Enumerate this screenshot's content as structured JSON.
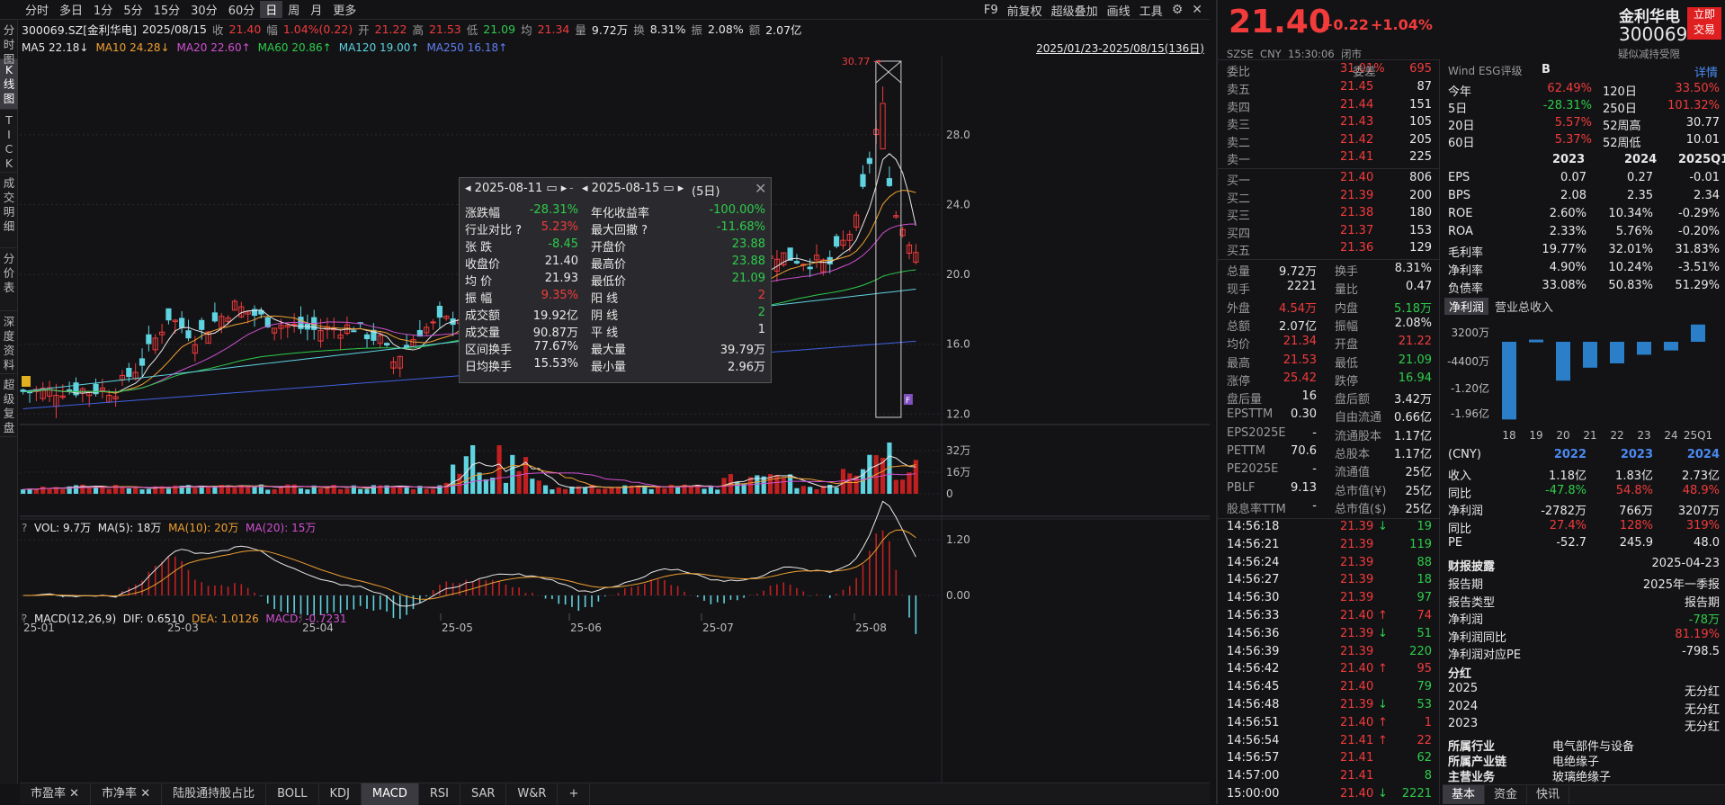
{
  "periods": [
    "分时",
    "多日",
    "1分",
    "5分",
    "15分",
    "30分",
    "60分",
    "日",
    "周",
    "月",
    "更多"
  ],
  "top_right": [
    "F9",
    "前复权",
    "超级叠加",
    "画线",
    "工具"
  ],
  "info": {
    "code": "300069.SZ[金利华电]",
    "date": "2025/08/15",
    "close_label": "收",
    "close": "21.40",
    "chg_label": "幅",
    "chg": "1.04%(0.22)",
    "open_label": "开",
    "open": "21.22",
    "high_label": "高",
    "high": "21.53",
    "low_label": "低",
    "low": "21.09",
    "avg_label": "均",
    "avg": "21.34",
    "vol_label": "量",
    "vol": "9.72万",
    "turn_label": "换",
    "turn": "8.31%",
    "amp_label": "振",
    "amp": "2.08%",
    "amt_label": "额",
    "amt": "2.07亿"
  },
  "ma": {
    "ma5": "MA5",
    "ma5_val": "22.18↓",
    "ma10": "MA10",
    "ma10_val": "24.28↓",
    "ma20": "MA20",
    "ma20_val": "22.60↑",
    "ma60": "MA60",
    "ma60_val": "20.86↑",
    "ma120": "MA120",
    "ma120_val": "19.00↑",
    "ma250": "MA250",
    "ma250_val": "16.18↑",
    "range": "2025/01/23-2025/08/15(136日)"
  },
  "leftnav": [
    "分时图",
    "K线图",
    "TICK",
    "成交明细",
    "分价表",
    "深度资料",
    "超级复盘"
  ],
  "kline": {
    "y_ticks": [
      "28.0",
      "24.0",
      "20.0",
      "16.0",
      "12.0"
    ],
    "max_label": "30.77",
    "x_ticks": [
      "25-01",
      "25-03",
      "25-04",
      "25-05",
      "25-06",
      "25-07",
      "25-08"
    ],
    "box_f": "F"
  },
  "vol": {
    "q": "?",
    "label": "VOL: 9.7万",
    "ma5": "MA(5): 18万",
    "ma10": "MA(10): 20万",
    "ma20": "MA(20): 15万",
    "y_ticks": [
      "32万",
      "16万",
      "0"
    ]
  },
  "macd": {
    "q": "?",
    "label": "MACD(12,26,9)",
    "dif": "DIF: 0.6510",
    "dea": "DEA: 1.0126",
    "macd": "MACD: -0.7231",
    "y_ticks": [
      "1.20",
      "0.00"
    ]
  },
  "popup": {
    "d1": "2025-08-11",
    "dash": "-",
    "d2": "2025-08-15",
    "days": "(5日)",
    "rows": [
      [
        "涨跌幅",
        "-28.31%",
        "年化收益率",
        "-100.00%"
      ],
      [
        "行业对比 ?",
        "5.23%",
        "最大回撤 ?",
        "-11.68%"
      ],
      [
        "张  跌",
        "-8.45",
        "开盘价",
        "23.88"
      ],
      [
        "收盘价",
        "21.40",
        "最高价",
        "23.88"
      ],
      [
        "均  价",
        "21.93",
        "最低价",
        "21.09"
      ],
      [
        "振  幅",
        "9.35%",
        "阳  线",
        "2"
      ],
      [
        "成交额",
        "19.92亿",
        "阴  线",
        "2"
      ],
      [
        "成交量",
        "90.87万",
        "平  线",
        "1"
      ],
      [
        "区间换手",
        "77.67%",
        "最大量",
        "39.79万"
      ],
      [
        "日均换手",
        "15.53%",
        "最小量",
        "2.96万"
      ]
    ]
  },
  "bottom_tabs": [
    "市盈率",
    "市净率",
    "陆股通持股占比",
    "BOLL",
    "KDJ",
    "MACD",
    "RSI",
    "SAR",
    "W&R",
    "+"
  ],
  "quote": {
    "price": "21.40",
    "chg": "+0.22",
    "pct": "+1.04%",
    "name": "金利华电",
    "code": "300069",
    "btn1": "立即",
    "btn2": "交易",
    "exch": "SZSE  CNY  15:30:06  闭市",
    "note": "疑似减持受限"
  },
  "orderbook": {
    "wb_label": "委比",
    "wb": "31.01%",
    "wc_label": "委差",
    "wc": "695",
    "asks": [
      [
        "卖五",
        "21.45",
        "87"
      ],
      [
        "卖四",
        "21.44",
        "151"
      ],
      [
        "卖三",
        "21.43",
        "105"
      ],
      [
        "卖二",
        "21.42",
        "205"
      ],
      [
        "卖一",
        "21.41",
        "225"
      ]
    ],
    "bids": [
      [
        "买一",
        "21.40",
        "806"
      ],
      [
        "买二",
        "21.39",
        "200"
      ],
      [
        "买三",
        "21.38",
        "180"
      ],
      [
        "买四",
        "21.37",
        "153"
      ],
      [
        "买五",
        "21.36",
        "129"
      ]
    ]
  },
  "stats": [
    [
      "总量",
      "9.72万",
      "换手",
      "8.31%"
    ],
    [
      "现手",
      "2221",
      "量比",
      "0.47"
    ],
    [
      "外盘",
      "4.54万",
      "内盘",
      "5.18万"
    ],
    [
      "总额",
      "2.07亿",
      "振幅",
      "2.08%"
    ],
    [
      "均价",
      "21.34",
      "开盘",
      "21.22"
    ],
    [
      "最高",
      "21.53",
      "最低",
      "21.09"
    ],
    [
      "涨停",
      "25.42",
      "跌停",
      "16.94"
    ],
    [
      "盘后量",
      "16",
      "盘后额",
      "3.42万"
    ],
    [
      "EPSTTM",
      "0.30",
      "自由流通",
      "0.66亿"
    ],
    [
      "EPS2025E",
      "-",
      "流通股本",
      "1.17亿"
    ],
    [
      "PETTM",
      "70.6",
      "总股本",
      "1.17亿"
    ],
    [
      "PE2025E",
      "-",
      "流通值",
      "25亿"
    ],
    [
      "PBLF",
      "9.13",
      "总市值(¥)",
      "25亿"
    ],
    [
      "股息率TTM",
      "-",
      "总市值($)",
      "25亿"
    ]
  ],
  "ticks": [
    [
      "14:56:18",
      "21.39",
      "↓",
      "19"
    ],
    [
      "14:56:21",
      "21.39",
      "",
      "119"
    ],
    [
      "14:56:24",
      "21.39",
      "",
      "88"
    ],
    [
      "14:56:27",
      "21.39",
      "",
      "18"
    ],
    [
      "14:56:30",
      "21.39",
      "",
      "97"
    ],
    [
      "14:56:33",
      "21.40",
      "↑",
      "74"
    ],
    [
      "14:56:36",
      "21.39",
      "↓",
      "51"
    ],
    [
      "14:56:39",
      "21.39",
      "",
      "220"
    ],
    [
      "14:56:42",
      "21.40",
      "↑",
      "95"
    ],
    [
      "14:56:45",
      "21.40",
      "",
      "79"
    ],
    [
      "14:56:48",
      "21.39",
      "↓",
      "53"
    ],
    [
      "14:56:51",
      "21.40",
      "↑",
      "1"
    ],
    [
      "14:56:54",
      "21.41",
      "↑",
      "22"
    ],
    [
      "14:56:57",
      "21.41",
      "",
      "62"
    ],
    [
      "14:57:00",
      "21.41",
      "",
      "8"
    ],
    [
      "15:00:00",
      "21.40",
      "↓",
      "2221"
    ]
  ],
  "esg": {
    "label": "Wind ESG评级",
    "grade": "B",
    "detail": "详情"
  },
  "perf": [
    [
      "今年",
      "62.49%",
      "120日",
      "33.50%"
    ],
    [
      "5日",
      "-28.31%",
      "250日",
      "101.32%"
    ],
    [
      "20日",
      "5.57%",
      "52周高",
      "30.77"
    ],
    [
      "60日",
      "5.37%",
      "52周低",
      "10.01"
    ]
  ],
  "fin_years": [
    "2023",
    "2024",
    "2025Q1"
  ],
  "fin": [
    [
      "EPS",
      "0.07",
      "0.27",
      "-0.01"
    ],
    [
      "BPS",
      "2.08",
      "2.35",
      "2.34"
    ],
    [
      "ROE",
      "2.60%",
      "10.34%",
      "-0.29%"
    ],
    [
      "ROA",
      "2.33%",
      "5.76%",
      "-0.20%"
    ],
    [
      "毛利率",
      "19.77%",
      "32.01%",
      "31.83%"
    ],
    [
      "净利率",
      "4.90%",
      "10.24%",
      "-3.51%"
    ],
    [
      "负债率",
      "33.08%",
      "50.83%",
      "51.29%"
    ]
  ],
  "fin_tabs": [
    "净利润",
    "营业总收入"
  ],
  "mini": {
    "y": [
      "3200万",
      "-4400万",
      "-1.20亿",
      "-1.96亿"
    ],
    "x": [
      "18",
      "19",
      "20",
      "21",
      "22",
      "23",
      "24",
      "25Q1"
    ]
  },
  "annual": {
    "hdr": [
      "(CNY)",
      "2022",
      "2023",
      "2024"
    ],
    "rows": [
      [
        "收入",
        "1.18亿",
        "1.83亿",
        "2.73亿"
      ],
      [
        "同比",
        "-47.8%",
        "54.8%",
        "48.9%"
      ],
      [
        "净利润",
        "-2782万",
        "766万",
        "3207万"
      ],
      [
        "同比",
        "27.4%",
        "128%",
        "319%"
      ],
      [
        "PE",
        "-52.7",
        "245.9",
        "48.0"
      ]
    ]
  },
  "disclosure": {
    "title": "财报披露",
    "date": "2025-04-23",
    "rows": [
      [
        "报告期",
        "2025年一季报"
      ],
      [
        "报告类型",
        "报告期"
      ],
      [
        "净利润",
        "-78万"
      ],
      [
        "净利润同比",
        "81.19%"
      ],
      [
        "净利润对应PE",
        "-798.5"
      ]
    ]
  },
  "dividend": {
    "title": "分红",
    "rows": [
      [
        "2025",
        "无分红"
      ],
      [
        "2024",
        "无分红"
      ],
      [
        "2023",
        "无分红"
      ]
    ]
  },
  "industry": [
    [
      "所属行业",
      "电气部件与设备"
    ],
    [
      "所属产业链",
      "电绝缘子"
    ],
    [
      "主营业务",
      "玻璃绝缘子"
    ]
  ],
  "right_tabs": [
    "基本",
    "资金",
    "快讯"
  ],
  "chart_data": {
    "type": "candlestick",
    "ma_series": [
      "MA5",
      "MA10",
      "MA20",
      "MA60",
      "MA120",
      "MA250"
    ],
    "y_ticks": [
      28.0,
      24.0,
      20.0,
      16.0,
      12.0
    ],
    "max": 30.77,
    "colors": {
      "up": "#f23b3b",
      "down": "#5fd3e0",
      "ma5": "#e8e8e8",
      "ma10": "#f0a030",
      "ma20": "#d050d0",
      "ma60": "#2ecc4a",
      "ma120": "#5fd3e0",
      "ma250": "#4060e0"
    }
  }
}
